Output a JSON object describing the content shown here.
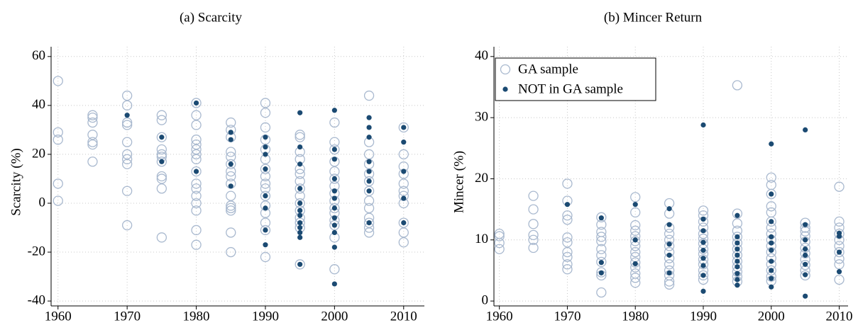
{
  "chart_data": [
    {
      "type": "scatter",
      "title": "(a) Scarcity",
      "ylabel": "Scarcity (%)",
      "xlim": [
        1959,
        2013
      ],
      "ylim": [
        -42,
        64
      ],
      "xticks": [
        1960,
        1970,
        1980,
        1990,
        2000,
        2010
      ],
      "yticks": [
        -40,
        -20,
        0,
        20,
        40,
        60
      ],
      "grid": true,
      "series": [
        {
          "color": "#a9b9cf",
          "marker": "open",
          "x": [
            1960,
            1960,
            1960,
            1960,
            1960,
            1965,
            1965,
            1965,
            1965,
            1965,
            1965,
            1965,
            1970,
            1970,
            1970,
            1970,
            1970,
            1970,
            1970,
            1970,
            1970,
            1970,
            1975,
            1975,
            1975,
            1975,
            1975,
            1975,
            1975,
            1975,
            1975,
            1975,
            1975,
            1980,
            1980,
            1980,
            1980,
            1980,
            1980,
            1980,
            1980,
            1980,
            1980,
            1980,
            1980,
            1980,
            1980,
            1980,
            1980,
            1985,
            1985,
            1985,
            1985,
            1985,
            1985,
            1985,
            1985,
            1985,
            1985,
            1985,
            1985,
            1985,
            1985,
            1985,
            1990,
            1990,
            1990,
            1990,
            1990,
            1990,
            1990,
            1990,
            1990,
            1990,
            1990,
            1990,
            1990,
            1990,
            1990,
            1990,
            1995,
            1995,
            1995,
            1995,
            1995,
            1995,
            1995,
            1995,
            1995,
            1995,
            1995,
            1995,
            1995,
            1995,
            1995,
            2000,
            2000,
            2000,
            2000,
            2000,
            2000,
            2000,
            2000,
            2000,
            2000,
            2000,
            2000,
            2000,
            2000,
            2000,
            2005,
            2005,
            2005,
            2005,
            2005,
            2005,
            2005,
            2005,
            2005,
            2005,
            2005,
            2005,
            2005,
            2010,
            2010,
            2010,
            2010,
            2010,
            2010,
            2010,
            2010,
            2010,
            2010,
            2010
          ],
          "values": [
            50,
            29,
            26,
            8,
            1,
            36,
            35,
            33,
            28,
            25,
            24,
            17,
            44,
            40,
            33,
            32,
            25,
            20,
            18,
            16,
            5,
            -9,
            36,
            34,
            27,
            22,
            20,
            19,
            17,
            11,
            10,
            6,
            -14,
            41,
            36,
            32,
            26,
            24,
            22,
            20,
            18,
            13,
            8,
            6,
            3,
            0,
            -3,
            -11,
            -17,
            33,
            30,
            27,
            21,
            19,
            16,
            13,
            11,
            8,
            3,
            -1,
            -2,
            -3,
            -12,
            -20,
            41,
            37,
            31,
            26,
            22,
            18,
            14,
            11,
            8,
            6,
            3,
            -1,
            -4,
            -8,
            -11,
            -22,
            28,
            27,
            21,
            18,
            14,
            12,
            9,
            6,
            3,
            0,
            -3,
            -6,
            -8,
            -10,
            -25,
            33,
            25,
            22,
            17,
            13,
            10,
            7,
            4,
            1,
            -2,
            -4,
            -7,
            -9,
            -14,
            -27,
            44,
            25,
            20,
            16,
            12,
            9,
            5,
            1,
            -2,
            -6,
            -8,
            -10,
            -12,
            31,
            20,
            15,
            12,
            8,
            5,
            3,
            0,
            -8,
            -12,
            -16
          ]
        },
        {
          "color": "#1b4a72",
          "marker": "filled",
          "x": [
            1970,
            1975,
            1975,
            1980,
            1980,
            1985,
            1985,
            1985,
            1985,
            1990,
            1990,
            1990,
            1990,
            1990,
            1990,
            1990,
            1990,
            1995,
            1995,
            1995,
            1995,
            1995,
            1995,
            1995,
            1995,
            1995,
            1995,
            1995,
            1995,
            2000,
            2000,
            2000,
            2000,
            2000,
            2000,
            2000,
            2000,
            2000,
            2000,
            2000,
            2000,
            2005,
            2005,
            2005,
            2005,
            2005,
            2005,
            2005,
            2005,
            2010,
            2010,
            2010,
            2010,
            2010
          ],
          "values": [
            36,
            27,
            17,
            41,
            13,
            29,
            26,
            16,
            7,
            27,
            23,
            20,
            14,
            3,
            -2,
            -11,
            -17,
            37,
            23,
            16,
            6,
            0,
            -3,
            -5,
            -8,
            -10,
            -12,
            -14,
            -25,
            38,
            22,
            18,
            10,
            5,
            2,
            -2,
            -6,
            -9,
            -12,
            -18,
            -33,
            35,
            31,
            27,
            17,
            13,
            9,
            5,
            -8,
            31,
            25,
            13,
            2,
            -8
          ]
        }
      ]
    },
    {
      "type": "scatter",
      "title": "(b) Mincer Return",
      "ylabel": "Mincer (%)",
      "xlim": [
        1959.2,
        2011.3
      ],
      "ylim": [
        -0.8,
        41.6
      ],
      "xticks": [
        1960,
        1970,
        1980,
        1990,
        2000,
        2010
      ],
      "yticks": [
        0,
        10,
        20,
        30,
        40
      ],
      "grid": true,
      "legend": "upper left",
      "series": [
        {
          "name": "GA sample",
          "color": "#a9b9cf",
          "marker": "open",
          "x": [
            1960,
            1960,
            1960,
            1960,
            1965,
            1965,
            1965,
            1965,
            1965,
            1965,
            1970,
            1970,
            1970,
            1970,
            1970,
            1970,
            1970,
            1970,
            1970,
            1970,
            1975,
            1975,
            1975,
            1975,
            1975,
            1975,
            1975,
            1975,
            1975,
            1975,
            1975,
            1980,
            1980,
            1980,
            1980,
            1980,
            1980,
            1980,
            1980,
            1980,
            1980,
            1980,
            1980,
            1980,
            1980,
            1985,
            1985,
            1985,
            1985,
            1985,
            1985,
            1985,
            1985,
            1985,
            1985,
            1985,
            1985,
            1985,
            1990,
            1990,
            1990,
            1990,
            1990,
            1990,
            1990,
            1990,
            1990,
            1990,
            1990,
            1990,
            1990,
            1990,
            1995,
            1995,
            1995,
            1995,
            1995,
            1995,
            1995,
            1995,
            1995,
            1995,
            1995,
            1995,
            1995,
            2000,
            2000,
            2000,
            2000,
            2000,
            2000,
            2000,
            2000,
            2000,
            2000,
            2000,
            2000,
            2000,
            2000,
            2000,
            2000,
            2005,
            2005,
            2005,
            2005,
            2005,
            2005,
            2005,
            2005,
            2005,
            2005,
            2005,
            2010,
            2010,
            2010,
            2010,
            2010,
            2010,
            2010,
            2010,
            2010,
            2010
          ],
          "values": [
            11,
            10.6,
            9.5,
            8.5,
            17.2,
            15,
            12.6,
            10.8,
            10,
            8.7,
            19.2,
            16.4,
            14,
            13.3,
            10.4,
            9.6,
            8,
            7.2,
            6,
            5.2,
            13.7,
            12.5,
            11.3,
            10.5,
            9.8,
            8.5,
            7.5,
            6.4,
            4.7,
            4.2,
            1.4,
            17,
            14.5,
            12.4,
            11.5,
            10.6,
            9.8,
            9,
            8,
            7.2,
            6.3,
            5.5,
            4.5,
            3.8,
            3,
            16,
            14.3,
            12,
            11,
            10,
            9,
            8,
            7,
            6,
            5,
            4.2,
            3.2,
            2.7,
            14.8,
            14,
            13,
            12,
            11,
            10.2,
            9.4,
            8.5,
            7.7,
            6.8,
            6,
            5,
            4.2,
            3.5,
            14.3,
            35.3,
            12.7,
            11.5,
            10.5,
            9.5,
            8.5,
            7.5,
            6.5,
            5.6,
            4.8,
            4,
            3.2,
            20.2,
            19,
            17.5,
            15.5,
            14.5,
            13,
            12,
            11,
            10,
            9,
            8,
            7,
            6,
            5,
            4,
            3.3,
            12.8,
            12,
            11.4,
            10.6,
            9.7,
            8.7,
            7.8,
            6.8,
            5.9,
            5,
            4.2,
            18.7,
            13,
            12,
            11,
            10,
            9,
            8,
            6.9,
            6,
            3.5
          ]
        },
        {
          "name": "NOT in GA sample",
          "color": "#1b4a72",
          "marker": "filled",
          "x": [
            1970,
            1975,
            1975,
            1975,
            1980,
            1980,
            1980,
            1985,
            1985,
            1985,
            1985,
            1985,
            1990,
            1990,
            1990,
            1990,
            1990,
            1990,
            1990,
            1990,
            1990,
            1995,
            1995,
            1995,
            1995,
            1995,
            1995,
            1995,
            1995,
            1995,
            1995,
            2000,
            2000,
            2000,
            2000,
            2000,
            2000,
            2000,
            2000,
            2000,
            2000,
            2005,
            2005,
            2005,
            2005,
            2005,
            2005,
            2005,
            2005,
            2010,
            2010,
            2010,
            2010
          ],
          "values": [
            15.8,
            13.6,
            6.3,
            4.6,
            15.8,
            10,
            6.1,
            15.1,
            12.5,
            9.3,
            7.5,
            4.6,
            28.8,
            13.4,
            11.5,
            9.6,
            8.3,
            7,
            5.8,
            4.2,
            1.6,
            14,
            10.5,
            9.5,
            8.5,
            7.5,
            6.5,
            5.6,
            4.5,
            3.5,
            2.6,
            25.7,
            17.5,
            13,
            10.5,
            9.5,
            8.3,
            6.5,
            5,
            3.7,
            2.3,
            28,
            12.5,
            10,
            8.5,
            7.5,
            6,
            4.3,
            0.8,
            11.1,
            10.6,
            8,
            4.8
          ]
        }
      ]
    }
  ]
}
